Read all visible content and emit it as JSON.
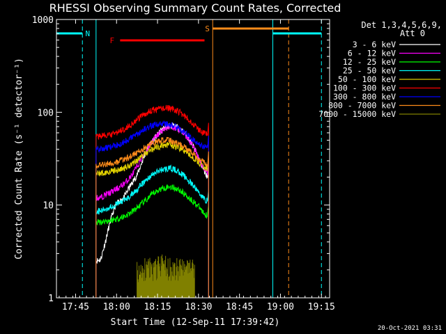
{
  "chart_data": {
    "type": "line",
    "title": "RHESSI Observing Summary Count Rates, Corrected",
    "xlabel": "Start Time (12-Sep-11 17:39:42)",
    "ylabel": "Corrected Count Rate (s⁻¹ detector⁻¹)",
    "yscale": "log",
    "ylim": [
      1,
      1000
    ],
    "xlim_minutes": [
      -1.7,
      98.3
    ],
    "xticks": [
      {
        "label": "17:45",
        "t": 5.3
      },
      {
        "label": "18:00",
        "t": 20.3
      },
      {
        "label": "18:15",
        "t": 35.3
      },
      {
        "label": "18:30",
        "t": 50.3
      },
      {
        "label": "18:45",
        "t": 65.3
      },
      {
        "label": "19:00",
        "t": 80.3
      },
      {
        "label": "19:15",
        "t": 95.3
      }
    ],
    "yticks": [
      {
        "label": "1000",
        "v": 1000
      },
      {
        "label": "100",
        "v": 100
      },
      {
        "label": "10",
        "v": 10
      },
      {
        "label": "1",
        "v": 1
      }
    ],
    "legend_header": [
      "Det 1,3,4,5,6,9,",
      "Att 0"
    ],
    "footer_date": "20-Oct-2021 03:31",
    "grid": false,
    "legend_position": "right",
    "series": [
      {
        "name": "3 - 6 keV",
        "color": "#ffffff",
        "x": [
          12.8,
          14.5,
          16.2,
          17.9,
          19.6,
          21.3,
          23.0,
          24.7,
          26.4,
          28.1,
          29.8,
          31.5,
          33.2,
          34.9,
          36.6,
          38.3,
          40.0,
          41.7,
          43.4,
          45.1,
          46.8,
          48.5,
          50.2,
          51.9,
          53.6
        ],
        "y": [
          2.5,
          2.6,
          4.0,
          6.5,
          9.5,
          11.0,
          12.0,
          15.0,
          18.0,
          22.0,
          30.0,
          40.0,
          48.0,
          55.0,
          63.0,
          70.0,
          72.0,
          70.0,
          66.0,
          60.0,
          52.0,
          42.0,
          33.0,
          25.0,
          20.0
        ]
      },
      {
        "name": "6 - 12 keV",
        "color": "#ff00ff",
        "x": [
          12.8,
          14.5,
          16.2,
          17.9,
          19.6,
          21.3,
          23.0,
          24.7,
          26.4,
          28.1,
          29.8,
          31.5,
          33.2,
          34.9,
          36.6,
          38.3,
          40.0,
          41.7,
          43.4,
          45.1,
          46.8,
          48.5,
          50.2,
          51.9,
          53.6
        ],
        "y": [
          12.0,
          12.0,
          13.0,
          13.5,
          14.5,
          15.5,
          17.0,
          19.0,
          22.0,
          27.0,
          33.0,
          40.0,
          48.0,
          55.0,
          62.0,
          68.0,
          70.0,
          68.0,
          64.0,
          58.0,
          50.0,
          42.0,
          33.0,
          26.0,
          22.0
        ]
      },
      {
        "name": "12 - 25 keV",
        "color": "#00ff00",
        "x": [
          12.8,
          14.5,
          16.2,
          17.9,
          19.6,
          21.3,
          23.0,
          24.7,
          26.4,
          28.1,
          29.8,
          31.5,
          33.2,
          34.9,
          36.6,
          38.3,
          40.0,
          41.7,
          43.4,
          45.1,
          46.8,
          48.5,
          50.2,
          51.9,
          53.6
        ],
        "y": [
          6.5,
          6.6,
          6.7,
          6.8,
          7.0,
          7.2,
          7.5,
          8.0,
          8.6,
          9.5,
          10.5,
          11.5,
          13.0,
          14.0,
          15.0,
          15.5,
          15.8,
          15.2,
          14.5,
          13.2,
          12.0,
          10.8,
          9.8,
          8.4,
          7.6
        ]
      },
      {
        "name": "25 - 50 keV",
        "color": "#00ffff",
        "x": [
          12.8,
          14.5,
          16.2,
          17.9,
          19.6,
          21.3,
          23.0,
          24.7,
          26.4,
          28.1,
          29.8,
          31.5,
          33.2,
          34.9,
          36.6,
          38.3,
          40.0,
          41.7,
          43.4,
          45.1,
          46.8,
          48.5,
          50.2,
          51.9,
          53.6
        ],
        "y": [
          8.5,
          8.6,
          9.0,
          9.5,
          10.0,
          10.5,
          11.2,
          12.0,
          13.5,
          15.0,
          17.0,
          19.0,
          21.0,
          22.5,
          24.0,
          24.5,
          24.8,
          24.0,
          22.5,
          20.5,
          18.0,
          16.0,
          14.0,
          12.0,
          11.0
        ]
      },
      {
        "name": "50 - 100 keV",
        "color": "#e0d000",
        "x": [
          12.8,
          14.5,
          16.2,
          17.9,
          19.6,
          21.3,
          23.0,
          24.7,
          26.4,
          28.1,
          29.8,
          31.5,
          33.2,
          34.9,
          36.6,
          38.3,
          40.0,
          41.7,
          43.4,
          45.1,
          46.8,
          48.5,
          50.2,
          51.9,
          53.6
        ],
        "y": [
          22.0,
          22.0,
          22.5,
          23.0,
          23.5,
          24.0,
          25.0,
          26.5,
          28.5,
          31.0,
          34.0,
          37.0,
          40.0,
          42.0,
          43.5,
          44.5,
          44.5,
          43.0,
          41.0,
          38.5,
          35.5,
          32.0,
          29.0,
          26.0,
          24.5
        ]
      },
      {
        "name": "100 - 300 keV",
        "color": "#ff0000",
        "x": [
          12.8,
          14.5,
          16.2,
          17.9,
          19.6,
          21.3,
          23.0,
          24.7,
          26.4,
          28.1,
          29.8,
          31.5,
          33.2,
          34.9,
          36.6,
          38.3,
          40.0,
          41.7,
          43.4,
          45.1,
          46.8,
          48.5,
          50.2,
          51.9,
          53.6
        ],
        "y": [
          55.0,
          55.5,
          56.0,
          57.0,
          59.0,
          62.0,
          66.0,
          71.0,
          77.0,
          84.0,
          92.0,
          99.0,
          104.0,
          107.0,
          110.0,
          111.0,
          110.0,
          106.0,
          100.0,
          92.0,
          83.0,
          74.0,
          66.0,
          60.0,
          57.0
        ]
      },
      {
        "name": "300 - 800 keV",
        "color": "#0000ff",
        "x": [
          12.8,
          14.5,
          16.2,
          17.9,
          19.6,
          21.3,
          23.0,
          24.7,
          26.4,
          28.1,
          29.8,
          31.5,
          33.2,
          34.9,
          36.6,
          38.3,
          40.0,
          41.7,
          43.4,
          45.1,
          46.8,
          48.5,
          50.2,
          51.9,
          53.6
        ],
        "y": [
          40.0,
          40.5,
          41.0,
          42.0,
          43.5,
          45.5,
          48.0,
          51.0,
          55.0,
          59.0,
          64.0,
          68.0,
          72.0,
          74.0,
          75.0,
          75.0,
          73.0,
          70.0,
          66.0,
          61.0,
          55.0,
          50.0,
          46.0,
          43.0,
          41.5
        ]
      },
      {
        "name": "800 - 7000 keV",
        "color": "#ff8c1a",
        "x": [
          12.8,
          14.5,
          16.2,
          17.9,
          19.6,
          21.3,
          23.0,
          24.7,
          26.4,
          28.1,
          29.8,
          31.5,
          33.2,
          34.9,
          36.6,
          38.3,
          40.0,
          41.7,
          43.4,
          45.1,
          46.8,
          48.5,
          50.2,
          51.9,
          53.6
        ],
        "y": [
          27.0,
          27.2,
          27.5,
          28.0,
          28.8,
          29.8,
          31.0,
          32.5,
          34.5,
          37.0,
          40.0,
          43.0,
          46.0,
          48.0,
          49.5,
          50.0,
          49.5,
          47.5,
          45.0,
          42.0,
          38.5,
          35.0,
          32.0,
          29.5,
          28.0
        ]
      },
      {
        "name": "7000 - 15000 keV",
        "color": "#808000",
        "x": [
          27.8,
          31.0,
          34.0,
          37.0,
          40.0,
          43.0,
          46.0,
          49.0
        ],
        "y": [
          1.9,
          2.0,
          2.0,
          2.2,
          2.0,
          2.0,
          2.0,
          1.9
        ]
      }
    ],
    "annotations": [
      {
        "label": "N",
        "color": "#00ffff"
      },
      {
        "label": "F",
        "color": "#ff0000"
      },
      {
        "label": "S",
        "color": "#ff8c1a"
      }
    ]
  }
}
